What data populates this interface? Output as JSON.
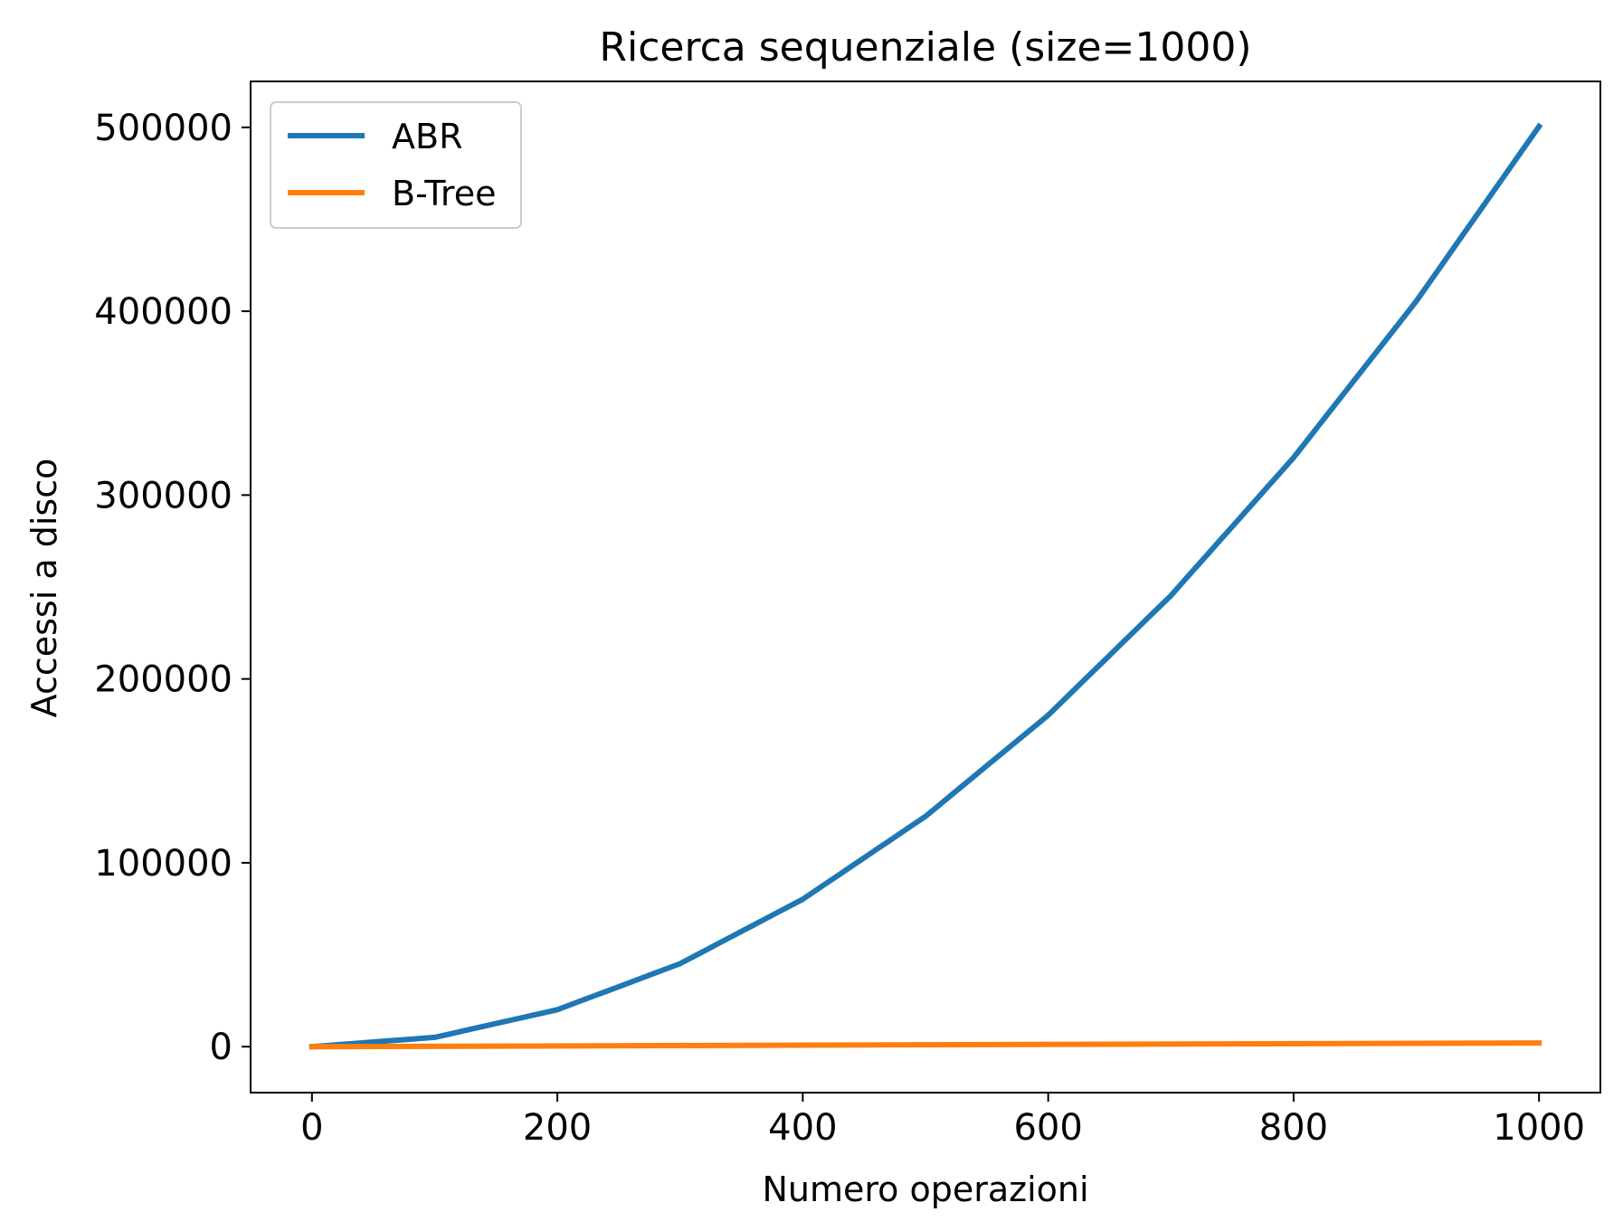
{
  "chart_data": {
    "type": "line",
    "title": "Ricerca sequenziale (size=1000)",
    "xlabel": "Numero operazioni",
    "ylabel": "Accessi a disco",
    "xlim": [
      -50,
      1050
    ],
    "ylim": [
      -25000,
      525000
    ],
    "xticks": [
      0,
      200,
      400,
      600,
      800,
      1000
    ],
    "xtick_labels": [
      "0",
      "200",
      "400",
      "600",
      "800",
      "1000"
    ],
    "yticks": [
      0,
      100000,
      200000,
      300000,
      400000,
      500000
    ],
    "ytick_labels": [
      "0",
      "100000",
      "200000",
      "300000",
      "400000",
      "500000"
    ],
    "grid": false,
    "legend": "top-left",
    "series": [
      {
        "name": "ABR",
        "color": "#1f77b4",
        "x": [
          0,
          100,
          200,
          300,
          400,
          500,
          600,
          700,
          800,
          900,
          1000
        ],
        "y": [
          0,
          5050,
          20100,
          45150,
          80200,
          125250,
          180300,
          245350,
          320400,
          405450,
          500500
        ]
      },
      {
        "name": "B-Tree",
        "color": "#ff7f0e",
        "x": [
          0,
          1000
        ],
        "y": [
          0,
          2000
        ]
      }
    ]
  }
}
